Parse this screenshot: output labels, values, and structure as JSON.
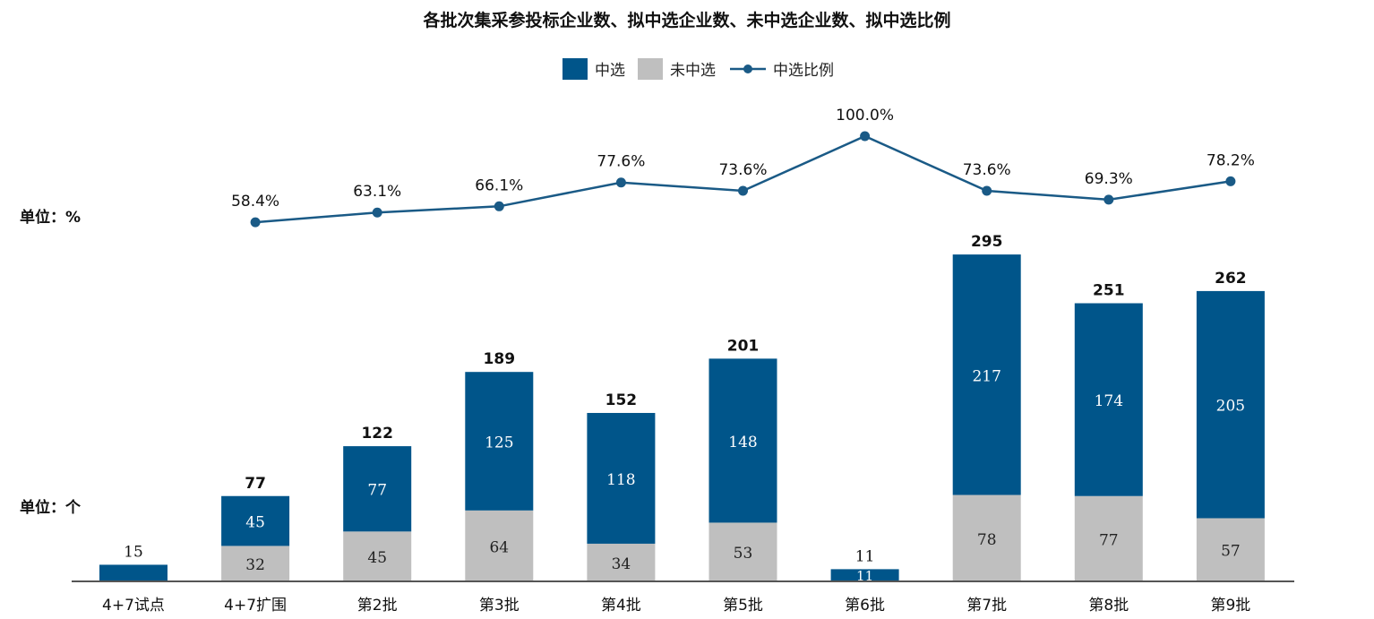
{
  "chart_data": {
    "type": "bar",
    "title": "各批次集采参投标企业数、拟中选企业数、未中选企业数、拟中选比例",
    "categories": [
      "4+7试点",
      "4+7扩围",
      "第2批",
      "第3批",
      "第4批",
      "第5批",
      "第6批",
      "第7批",
      "第8批",
      "第9批"
    ],
    "series": [
      {
        "name": "中选",
        "type": "bar",
        "stack": "total",
        "color": "#00558a",
        "values": [
          15,
          45,
          77,
          125,
          118,
          148,
          11,
          217,
          174,
          205
        ]
      },
      {
        "name": "未中选",
        "type": "bar",
        "stack": "total",
        "color": "#bfbfbf",
        "values": [
          null,
          32,
          45,
          64,
          34,
          53,
          null,
          78,
          77,
          57
        ]
      },
      {
        "name": "中选比例",
        "type": "line",
        "color": "#1a5a86",
        "values": [
          null,
          58.4,
          63.1,
          66.1,
          77.6,
          73.6,
          100.0,
          73.6,
          69.3,
          78.2
        ]
      }
    ],
    "totals": [
      15,
      77,
      122,
      189,
      152,
      201,
      11,
      295,
      251,
      262
    ],
    "ratio_labels": [
      "",
      "58.4%",
      "63.1%",
      "66.1%",
      "77.6%",
      "73.6%",
      "100.0%",
      "73.6%",
      "69.3%",
      "78.2%"
    ],
    "unit_left_top": "单位：%",
    "unit_left_bottom": "单位：个",
    "legend": [
      "中选",
      "未中选",
      "中选比例"
    ],
    "legend_position": "top"
  }
}
